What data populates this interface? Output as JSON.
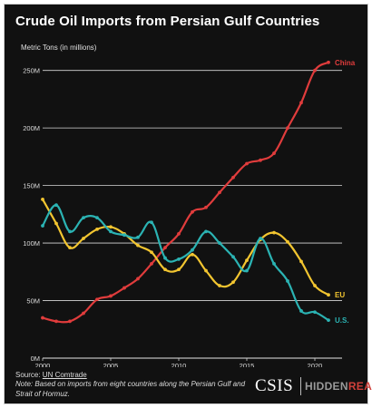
{
  "title": "Crude Oil Imports from Persian Gulf Countries",
  "source_label": "Source: ",
  "source_link": "UN Comtrade",
  "note": "Note: Based on imports from eight countries along the Persian Gulf and Strait of Hormuz.",
  "logos": {
    "csis": "CSIS",
    "hidden": "HIDDEN",
    "reach": "REACH"
  },
  "colors": {
    "background": "#111111",
    "grid": "#d8d8d8",
    "china": "#e03c3c",
    "eu": "#f2c530",
    "us": "#2bb3b3"
  },
  "chart_data": {
    "type": "line",
    "ylabel": "Metric Tons (in millions)",
    "xlim": [
      2000,
      2022
    ],
    "ylim": [
      0,
      260
    ],
    "x_ticks": [
      2000,
      2005,
      2010,
      2015,
      2020
    ],
    "y_ticks": [
      {
        "value": 0,
        "label": "0M"
      },
      {
        "value": 50,
        "label": "50M"
      },
      {
        "value": 100,
        "label": "100M"
      },
      {
        "value": 150,
        "label": "150M"
      },
      {
        "value": 200,
        "label": "200M"
      },
      {
        "value": 250,
        "label": "250M"
      }
    ],
    "grid": true,
    "legend": "inline labels at line ends",
    "x": [
      2000,
      2001,
      2002,
      2003,
      2004,
      2005,
      2006,
      2007,
      2008,
      2009,
      2010,
      2011,
      2012,
      2013,
      2014,
      2015,
      2016,
      2017,
      2018,
      2019,
      2020,
      2021
    ],
    "series": [
      {
        "name": "China",
        "key": "china",
        "values": [
          35,
          32,
          32,
          39,
          51,
          54,
          61,
          69,
          82,
          96,
          108,
          127,
          131,
          144,
          157,
          169,
          172,
          178,
          200,
          222,
          250,
          257
        ]
      },
      {
        "name": "EU",
        "key": "eu",
        "values": [
          138,
          117,
          96,
          104,
          112,
          114,
          108,
          98,
          92,
          77,
          77,
          90,
          76,
          63,
          66,
          85,
          103,
          109,
          101,
          84,
          63,
          55
        ]
      },
      {
        "name": "U.S.",
        "key": "us",
        "values": [
          115,
          133,
          110,
          122,
          122,
          110,
          107,
          105,
          118,
          87,
          86,
          94,
          110,
          100,
          88,
          76,
          104,
          82,
          67,
          41,
          40,
          33
        ]
      }
    ]
  }
}
